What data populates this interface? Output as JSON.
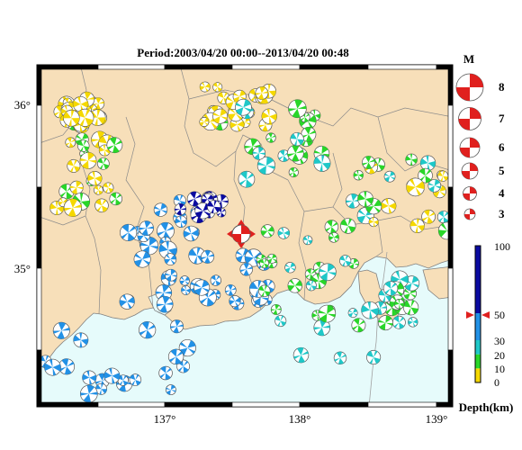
{
  "title": "Period:2003/04/20 00:00--2013/04/20 00:48",
  "map": {
    "lon_range": [
      136.05,
      139.1
    ],
    "lat_range": [
      34.2,
      36.2
    ],
    "lon_ticks": [
      "137°",
      "138°",
      "139°"
    ],
    "lat_ticks": [
      "36°",
      "35°"
    ],
    "land_color": "#f7dfb9",
    "sea_color": "#e6fbfb",
    "highlight_event": {
      "lon": 137.55,
      "lat": 35.27,
      "magnitude": 5
    }
  },
  "magnitude_legend": {
    "title": "M",
    "items": [
      "8",
      "7",
      "6",
      "5",
      "4",
      "3"
    ]
  },
  "depth_legend": {
    "title": "Depth(km)",
    "tick_labels": [
      "100",
      "50",
      "30",
      "20",
      "10",
      "0"
    ],
    "marker_value": 50,
    "bands": [
      {
        "from": 0,
        "to": 10,
        "color": "#f5d800"
      },
      {
        "from": 10,
        "to": 20,
        "color": "#29d629"
      },
      {
        "from": 20,
        "to": 30,
        "color": "#1fc8c8"
      },
      {
        "from": 30,
        "to": 50,
        "color": "#2291e6"
      },
      {
        "from": 50,
        "to": 100,
        "color": "#0a0aa0"
      }
    ]
  }
}
